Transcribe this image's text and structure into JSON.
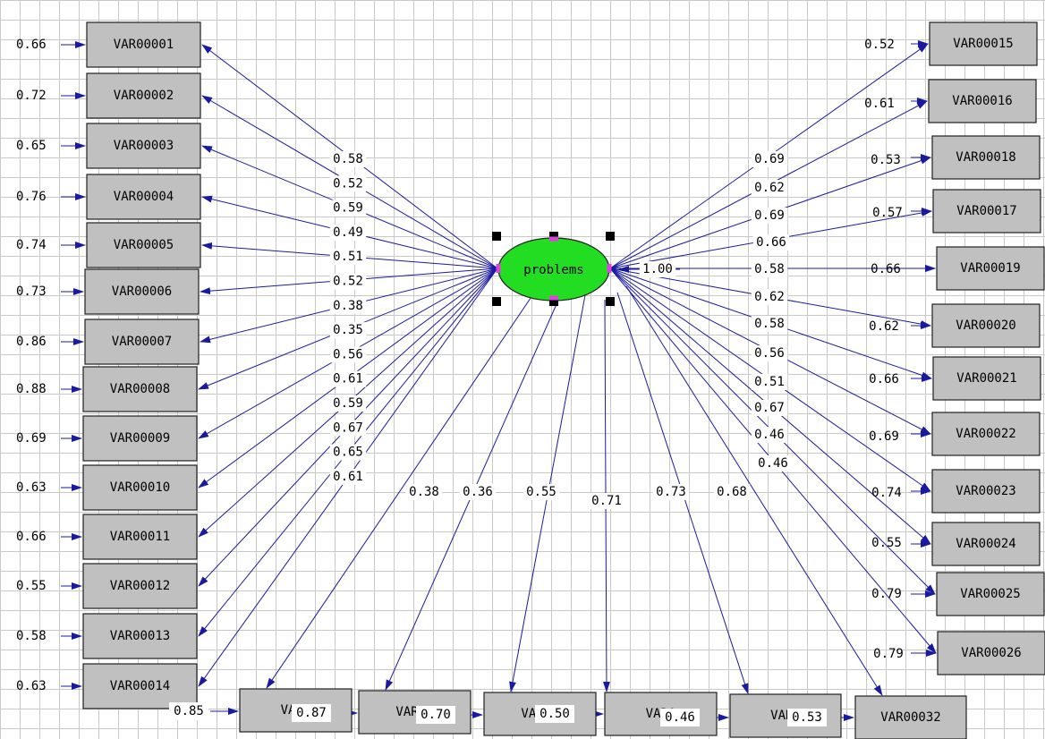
{
  "latent": {
    "label": "problems",
    "fill": "#22dd22",
    "variance": "1.00"
  },
  "colors": {
    "arrow": "#1a1aa0",
    "box_fill": "#c0c0c0",
    "handle_marker": "#e040e0"
  },
  "left_observed": [
    {
      "name": "VAR00001",
      "loading": "0.58",
      "error": "0.66"
    },
    {
      "name": "VAR00002",
      "loading": "0.52",
      "error": "0.72"
    },
    {
      "name": "VAR00003",
      "loading": "0.59",
      "error": "0.65"
    },
    {
      "name": "VAR00004",
      "loading": "0.49",
      "error": "0.76"
    },
    {
      "name": "VAR00005",
      "loading": "0.51",
      "error": "0.74"
    },
    {
      "name": "VAR00006",
      "loading": "0.52",
      "error": "0.73"
    },
    {
      "name": "VAR00007",
      "loading": "0.38",
      "error": "0.86"
    },
    {
      "name": "VAR00008",
      "loading": "0.35",
      "error": "0.88"
    },
    {
      "name": "VAR00009",
      "loading": "0.56",
      "error": "0.69"
    },
    {
      "name": "VAR00010",
      "loading": "0.61",
      "error": "0.63"
    },
    {
      "name": "VAR00011",
      "loading": "0.59",
      "error": "0.66"
    },
    {
      "name": "VAR00012",
      "loading": "0.67",
      "error": "0.55"
    },
    {
      "name": "VAR00013",
      "loading": "0.65",
      "error": "0.58"
    },
    {
      "name": "VAR00014",
      "loading": "0.61",
      "error": "0.63"
    }
  ],
  "right_observed": [
    {
      "name": "VAR00015",
      "loading": "0.69",
      "error": "0.52"
    },
    {
      "name": "VAR00016",
      "loading": "0.62",
      "error": "0.61"
    },
    {
      "name": "VAR00018",
      "loading": "0.69",
      "error": "0.53"
    },
    {
      "name": "VAR00017",
      "loading": "0.66",
      "error": "0.57"
    },
    {
      "name": "VAR00019",
      "loading": "0.58",
      "error": "0.66"
    },
    {
      "name": "VAR00020",
      "loading": "0.62",
      "error": "0.62"
    },
    {
      "name": "VAR00021",
      "loading": "0.58",
      "error": "0.66"
    },
    {
      "name": "VAR00022",
      "loading": "0.56",
      "error": "0.69"
    },
    {
      "name": "VAR00023",
      "loading": "0.51",
      "error": "0.74"
    },
    {
      "name": "VAR00024",
      "loading": "0.67",
      "error": "0.55"
    },
    {
      "name": "VAR00025",
      "loading": "0.46",
      "error": "0.79"
    },
    {
      "name": "VAR00026",
      "loading": "0.46",
      "error": "0.79"
    }
  ],
  "bottom_observed": [
    {
      "name": "VAR0",
      "loading": "0.38",
      "error": "0.85"
    },
    {
      "name": "VAR00",
      "loading": "0.36",
      "error": "0.87"
    },
    {
      "name": "VAR00",
      "loading": "0.55",
      "error": "0.70"
    },
    {
      "name": "VAR0",
      "loading": "0.71",
      "error": "0.50"
    },
    {
      "name": "VAR0",
      "loading": "0.73",
      "error": "0.46"
    },
    {
      "name": "VAR00032",
      "loading": "0.68",
      "error": "0.53"
    }
  ]
}
